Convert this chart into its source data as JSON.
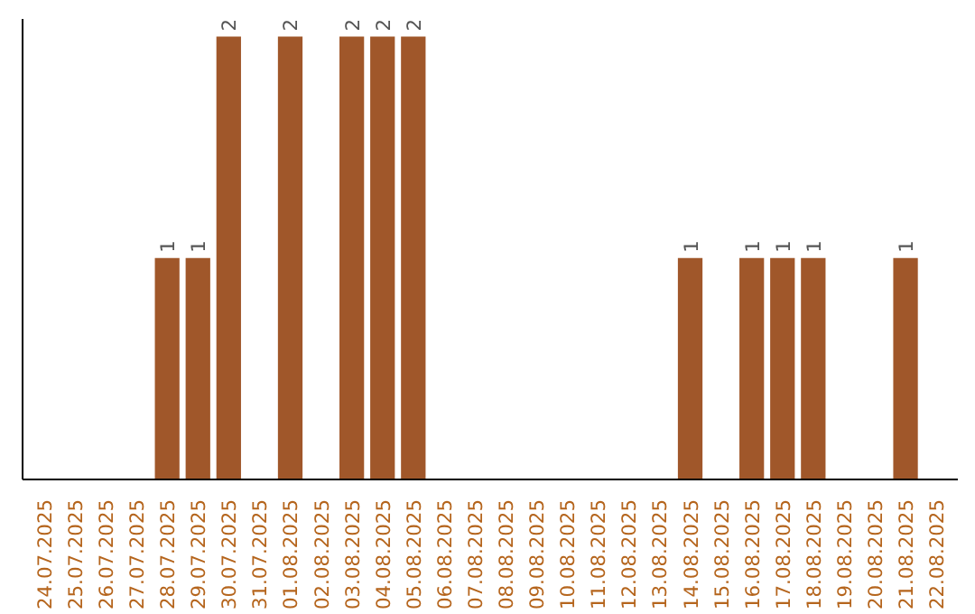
{
  "chart_data": {
    "type": "bar",
    "categories": [
      "24.07.2025",
      "25.07.2025",
      "26.07.2025",
      "27.07.2025",
      "28.07.2025",
      "29.07.2025",
      "30.07.2025",
      "31.07.2025",
      "01.08.2025",
      "02.08.2025",
      "03.08.2025",
      "04.08.2025",
      "05.08.2025",
      "06.08.2025",
      "07.08.2025",
      "08.08.2025",
      "09.08.2025",
      "10.08.2025",
      "11.08.2025",
      "12.08.2025",
      "13.08.2025",
      "14.08.2025",
      "15.08.2025",
      "16.08.2025",
      "17.08.2025",
      "18.08.2025",
      "19.08.2025",
      "20.08.2025",
      "21.08.2025",
      "22.08.2025"
    ],
    "values": [
      0,
      0,
      0,
      0,
      1,
      1,
      2,
      0,
      2,
      0,
      2,
      2,
      2,
      0,
      0,
      0,
      0,
      0,
      0,
      0,
      0,
      1,
      0,
      1,
      1,
      1,
      0,
      0,
      1,
      0
    ],
    "value_labels": [
      null,
      null,
      null,
      null,
      "1",
      "1",
      "2",
      null,
      "2",
      null,
      "2",
      "2",
      "2",
      null,
      null,
      null,
      null,
      null,
      null,
      null,
      null,
      "1",
      null,
      "1",
      "1",
      "1",
      null,
      null,
      "1",
      null
    ],
    "color": "#a0572a",
    "tick_labels": "x"
  }
}
